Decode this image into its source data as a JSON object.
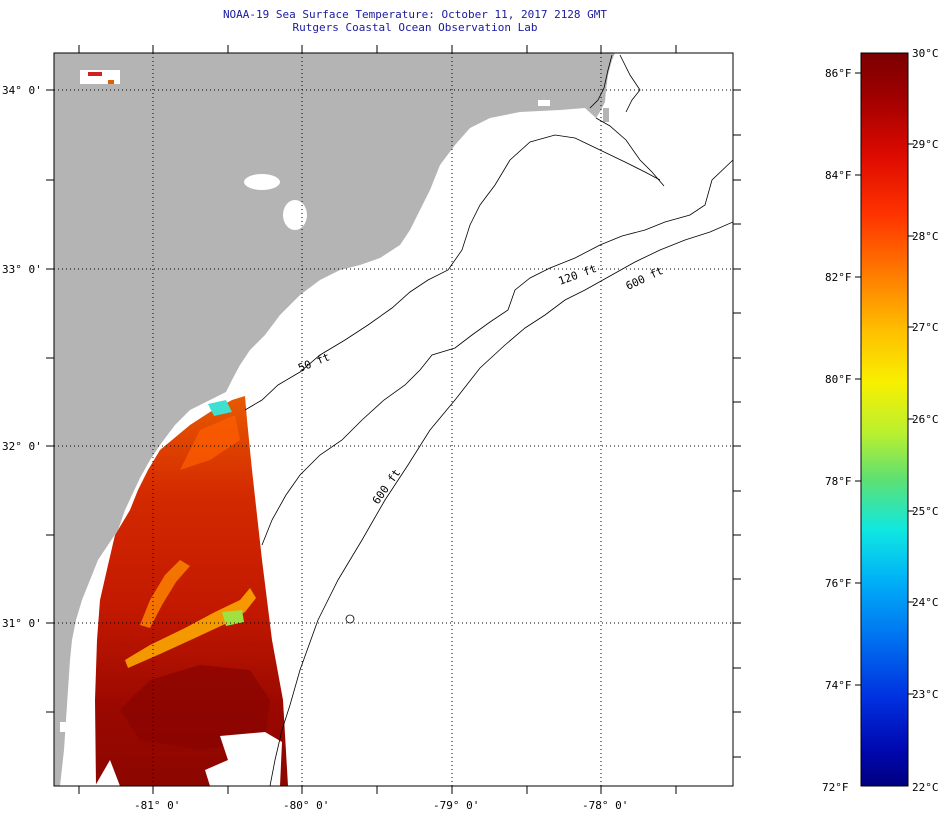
{
  "title": {
    "line1": "NOAA-19 Sea Surface Temperature:  October 11, 2017 2128 GMT",
    "line2": "Rutgers Coastal Ocean Observation Lab"
  },
  "map": {
    "lat_labels": [
      "34° 0'",
      "33° 0'",
      "32° 0'",
      "31° 0'"
    ],
    "lon_labels": [
      "-81° 0'",
      "-80° 0'",
      "-79° 0'",
      "-78° 0'"
    ],
    "contour_labels": [
      "50 ft",
      "120 ft",
      "600 ft",
      "600 ft"
    ],
    "colors": {
      "land": "#b4b4b4",
      "ocean": "#ffffff"
    }
  },
  "colorbar": {
    "f_labels": [
      "86°F",
      "84°F",
      "82°F",
      "80°F",
      "78°F",
      "76°F",
      "74°F",
      "72°F"
    ],
    "c_labels": [
      "30°C",
      "29°C",
      "28°C",
      "27°C",
      "26°C",
      "25°C",
      "24°C",
      "23°C",
      "22°C"
    ],
    "range_c": [
      22,
      30
    ],
    "range_f": [
      72,
      86
    ]
  }
}
